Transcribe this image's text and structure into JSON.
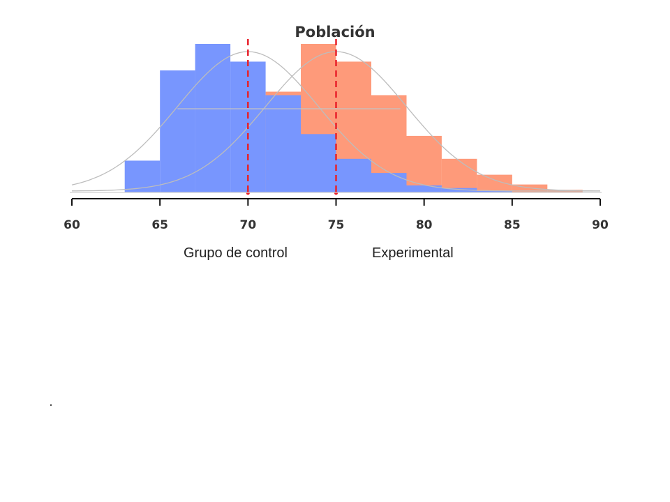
{
  "chart_data": {
    "type": "bar",
    "title": "Población",
    "xlim": [
      60,
      90
    ],
    "x_ticks": [
      "60",
      "65",
      "70",
      "75",
      "80",
      "85",
      "90"
    ],
    "x_tick_values": [
      60,
      65,
      70,
      75,
      80,
      85,
      90
    ],
    "ylim": [
      0,
      0.085
    ],
    "grid": false,
    "legend_position": "bottom-center",
    "series": [
      {
        "name": "Grupo de control",
        "color": "#7896fe",
        "mean": 70,
        "sd": 4,
        "bin_width": 2,
        "bin_starts": [
          63,
          65,
          67,
          69,
          71,
          73,
          75,
          77,
          79,
          81,
          83
        ],
        "values": [
          0.018,
          0.069,
          0.084,
          0.074,
          0.055,
          0.033,
          0.019,
          0.011,
          0.004,
          0.0025,
          0.0008
        ]
      },
      {
        "name": "Experimental",
        "color": "#fe9a7a",
        "mean": 75,
        "sd": 4,
        "bin_width": 2,
        "bin_starts": [
          71,
          73,
          75,
          77,
          79,
          81,
          83,
          85,
          87
        ],
        "values": [
          0.057,
          0.084,
          0.074,
          0.055,
          0.032,
          0.019,
          0.01,
          0.0045,
          0.0015
        ]
      }
    ]
  },
  "page": {
    "footnote": "."
  }
}
